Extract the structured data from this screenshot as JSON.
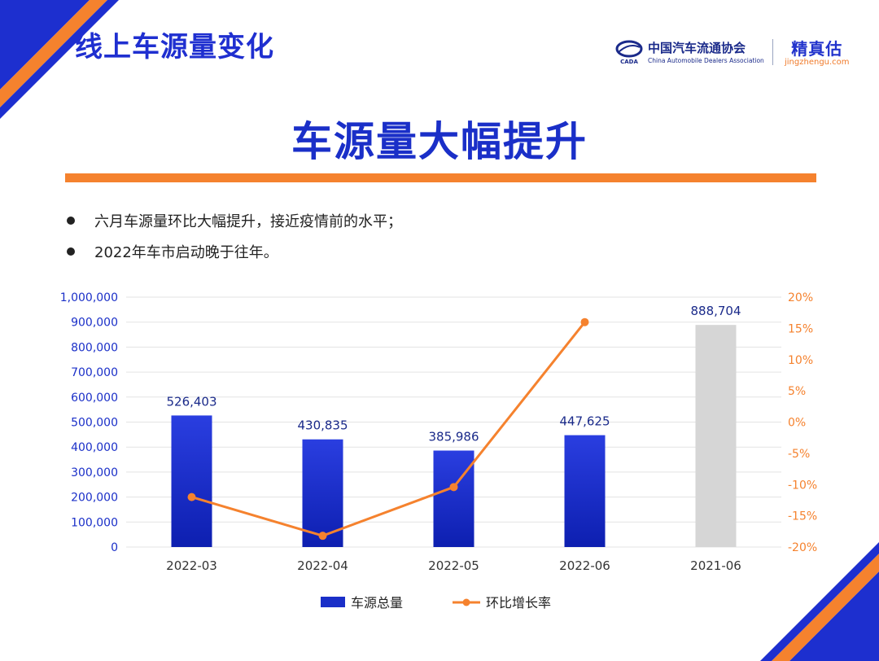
{
  "slide": {
    "title": "线上车源量变化",
    "headline": "车源量大幅提升",
    "bullets": [
      "六月车源量环比大幅提升，接近疫情前的水平；",
      "2022年车市启动晚于往年。"
    ]
  },
  "logos": {
    "cada_cn": "中国汽车流通协会",
    "cada_en": "China Automobile Dealers Association",
    "cada_emblem_text": "CADA",
    "jzg_cn": "精真估",
    "jzg_en": "jingzhengu.com"
  },
  "colors": {
    "accent_blue": "#1a2fc8",
    "accent_orange": "#f5822e",
    "bar_gray": "#d6d6d6"
  },
  "chart_data": {
    "type": "bar",
    "categories": [
      "2022-03",
      "2022-04",
      "2022-05",
      "2022-06",
      "2021-06"
    ],
    "series": [
      {
        "name": "车源总量",
        "type": "bar",
        "axis": "left",
        "values": [
          526403,
          430835,
          385986,
          447625,
          888704
        ],
        "labels": [
          "526,403",
          "430,835",
          "385,986",
          "447,625",
          "888,704"
        ],
        "highlight_gray_index": 4
      },
      {
        "name": "环比增长率",
        "type": "line",
        "axis": "right",
        "values": [
          -12.0,
          -18.2,
          -10.4,
          16.0,
          null
        ]
      }
    ],
    "y_left": {
      "lim": [
        0,
        1000000
      ],
      "ticks": [
        0,
        100000,
        200000,
        300000,
        400000,
        500000,
        600000,
        700000,
        800000,
        900000,
        1000000
      ],
      "tick_labels": [
        "0",
        "100,000",
        "200,000",
        "300,000",
        "400,000",
        "500,000",
        "600,000",
        "700,000",
        "800,000",
        "900,000",
        "1,000,000"
      ]
    },
    "y_right": {
      "lim": [
        -20,
        20
      ],
      "ticks": [
        -20,
        -15,
        -10,
        -5,
        0,
        5,
        10,
        15,
        20
      ],
      "tick_labels": [
        "-20%",
        "-15%",
        "-10%",
        "-5%",
        "0%",
        "5%",
        "10%",
        "15%",
        "20%"
      ]
    },
    "grid": true,
    "legend": "bottom"
  }
}
